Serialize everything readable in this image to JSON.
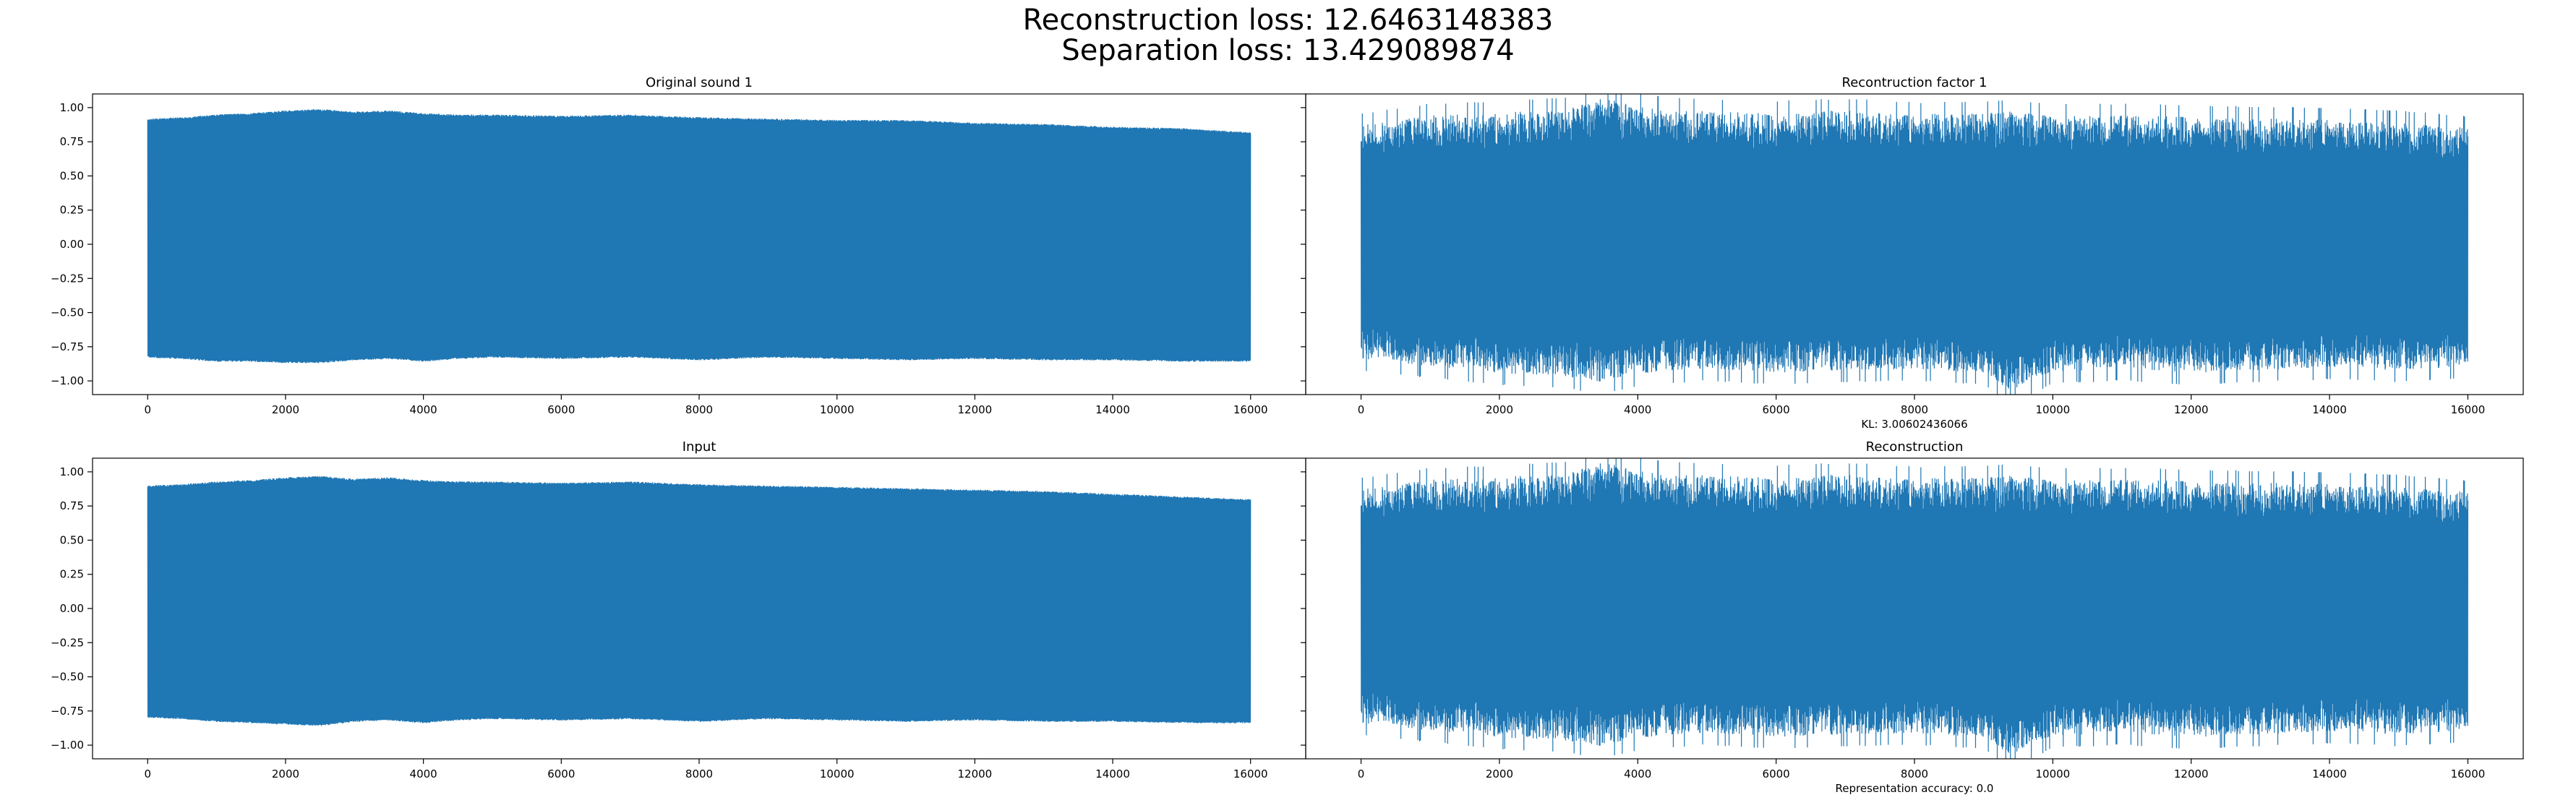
{
  "figure": {
    "suptitle_line1": "Reconstruction loss: 12.6463148383",
    "suptitle_line2": "Separation loss: 13.429089874",
    "series_color": "#1f77b4"
  },
  "chart_data": [
    {
      "type": "line",
      "title": "Original sound 1",
      "xlabel": "",
      "ylabel": "",
      "xlim": [
        -800,
        16800
      ],
      "ylim": [
        -1.1,
        1.1
      ],
      "xticks": [
        0,
        2000,
        4000,
        6000,
        8000,
        10000,
        12000,
        14000,
        16000
      ],
      "xtick_labels": [
        "0",
        "2000",
        "4000",
        "6000",
        "8000",
        "10000",
        "12000",
        "14000",
        "16000"
      ],
      "yticks": [
        1.0,
        0.75,
        0.5,
        0.25,
        0.0,
        -0.25,
        -0.5,
        -0.75,
        -1.0
      ],
      "ytick_labels": [
        "1.00",
        "0.75",
        "0.50",
        "0.25",
        "0.00",
        "−0.25",
        "−0.50",
        "−0.75",
        "−1.00"
      ],
      "grid": false,
      "envelope": {
        "x": [
          0,
          500,
          1000,
          1500,
          2000,
          2500,
          3000,
          3500,
          4000,
          4500,
          5000,
          6000,
          7000,
          8000,
          9000,
          10000,
          11000,
          12000,
          13000,
          14000,
          15000,
          16000
        ],
        "upper": [
          0.92,
          0.93,
          0.95,
          0.96,
          0.98,
          0.99,
          0.97,
          0.98,
          0.96,
          0.95,
          0.95,
          0.94,
          0.95,
          0.93,
          0.92,
          0.91,
          0.91,
          0.89,
          0.88,
          0.86,
          0.85,
          0.82
        ],
        "lower": [
          -0.83,
          -0.84,
          -0.86,
          -0.86,
          -0.87,
          -0.87,
          -0.85,
          -0.84,
          -0.86,
          -0.84,
          -0.83,
          -0.84,
          -0.83,
          -0.85,
          -0.83,
          -0.84,
          -0.85,
          -0.84,
          -0.85,
          -0.85,
          -0.86,
          -0.86
        ]
      }
    },
    {
      "type": "line",
      "title": "Recontruction factor 1",
      "xlabel": "KL: 3.00602436066",
      "ylabel": "",
      "xlim": [
        -800,
        16800
      ],
      "ylim": [
        -1.1,
        1.1
      ],
      "xticks": [
        0,
        2000,
        4000,
        6000,
        8000,
        10000,
        12000,
        14000,
        16000
      ],
      "xtick_labels": [
        "0",
        "2000",
        "4000",
        "6000",
        "8000",
        "10000",
        "12000",
        "14000",
        "16000"
      ],
      "yticks": [
        1.0,
        0.75,
        0.5,
        0.25,
        0.0,
        -0.25,
        -0.5,
        -0.75,
        -1.0
      ],
      "grid": false,
      "envelope": {
        "x": [
          0,
          1000,
          2000,
          3000,
          3500,
          4000,
          5000,
          6000,
          7000,
          8000,
          9000,
          9400,
          10000,
          11000,
          12000,
          13000,
          14000,
          15000,
          16000
        ],
        "upper": [
          0.88,
          0.95,
          0.97,
          1.0,
          1.08,
          1.02,
          0.98,
          0.97,
          0.99,
          0.96,
          0.97,
          0.98,
          0.95,
          0.95,
          0.94,
          0.93,
          0.92,
          0.9,
          0.86
        ],
        "lower": [
          -0.85,
          -0.9,
          -0.95,
          -0.98,
          -1.02,
          -0.96,
          -0.92,
          -0.95,
          -0.93,
          -0.92,
          -0.95,
          -1.1,
          -0.94,
          -0.92,
          -0.95,
          -0.93,
          -0.91,
          -0.93,
          -0.9
        ]
      }
    },
    {
      "type": "line",
      "title": "Input",
      "xlabel": "",
      "ylabel": "",
      "xlim": [
        -800,
        16800
      ],
      "ylim": [
        -1.1,
        1.1
      ],
      "xticks": [
        0,
        2000,
        4000,
        6000,
        8000,
        10000,
        12000,
        14000,
        16000
      ],
      "xtick_labels": [
        "0",
        "2000",
        "4000",
        "6000",
        "8000",
        "10000",
        "12000",
        "14000",
        "16000"
      ],
      "yticks": [
        1.0,
        0.75,
        0.5,
        0.25,
        0.0,
        -0.25,
        -0.5,
        -0.75,
        -1.0
      ],
      "ytick_labels": [
        "1.00",
        "0.75",
        "0.50",
        "0.25",
        "0.00",
        "−0.25",
        "−0.50",
        "−0.75",
        "−1.00"
      ],
      "grid": false,
      "envelope": {
        "x": [
          0,
          500,
          1000,
          1500,
          2000,
          2500,
          3000,
          3500,
          4000,
          4500,
          5000,
          6000,
          7000,
          8000,
          9000,
          10000,
          11000,
          12000,
          13000,
          14000,
          15000,
          16000
        ],
        "upper": [
          0.9,
          0.91,
          0.93,
          0.94,
          0.96,
          0.97,
          0.95,
          0.96,
          0.94,
          0.93,
          0.93,
          0.92,
          0.93,
          0.91,
          0.9,
          0.89,
          0.88,
          0.87,
          0.86,
          0.84,
          0.82,
          0.8
        ],
        "lower": [
          -0.8,
          -0.81,
          -0.83,
          -0.84,
          -0.85,
          -0.86,
          -0.83,
          -0.82,
          -0.84,
          -0.82,
          -0.81,
          -0.82,
          -0.81,
          -0.83,
          -0.81,
          -0.82,
          -0.83,
          -0.82,
          -0.83,
          -0.83,
          -0.84,
          -0.84
        ]
      }
    },
    {
      "type": "line",
      "title": "Reconstruction",
      "xlabel": "Representation accuracy: 0.0",
      "ylabel": "",
      "xlim": [
        -800,
        16800
      ],
      "ylim": [
        -1.1,
        1.1
      ],
      "xticks": [
        0,
        2000,
        4000,
        6000,
        8000,
        10000,
        12000,
        14000,
        16000
      ],
      "xtick_labels": [
        "0",
        "2000",
        "4000",
        "6000",
        "8000",
        "10000",
        "12000",
        "14000",
        "16000"
      ],
      "yticks": [
        1.0,
        0.75,
        0.5,
        0.25,
        0.0,
        -0.25,
        -0.5,
        -0.75,
        -1.0
      ],
      "grid": false,
      "envelope": {
        "x": [
          0,
          1000,
          2000,
          3000,
          3500,
          4000,
          5000,
          6000,
          7000,
          8000,
          9000,
          9400,
          10000,
          11000,
          12000,
          13000,
          14000,
          15000,
          16000
        ],
        "upper": [
          0.88,
          0.95,
          0.97,
          1.0,
          1.08,
          1.02,
          0.98,
          0.97,
          0.99,
          0.96,
          0.97,
          0.98,
          0.95,
          0.95,
          0.94,
          0.93,
          0.92,
          0.9,
          0.86
        ],
        "lower": [
          -0.85,
          -0.9,
          -0.95,
          -0.98,
          -1.02,
          -0.96,
          -0.92,
          -0.95,
          -0.93,
          -0.92,
          -0.95,
          -1.1,
          -0.94,
          -0.92,
          -0.95,
          -0.93,
          -0.91,
          -0.93,
          -0.9
        ]
      }
    }
  ]
}
